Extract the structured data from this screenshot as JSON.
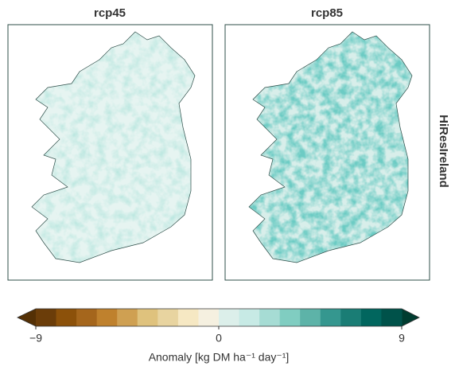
{
  "panels": [
    {
      "title": "rcp45"
    },
    {
      "title": "rcp85"
    }
  ],
  "row_label": "HiResIreland",
  "colorbar": {
    "label": "Anomaly [kg DM ha⁻¹ day⁻¹]",
    "lim": [
      -9,
      9
    ],
    "ticks": [
      {
        "value": -9,
        "label": "−9"
      },
      0,
      9
    ],
    "colors": [
      "#6b3d09",
      "#8c510a",
      "#a5661c",
      "#bf812d",
      "#cfa052",
      "#dfc27d",
      "#e8d4a0",
      "#f6e8c3",
      "#f5f0e0",
      "#dcefea",
      "#c7eae5",
      "#a6dcd4",
      "#80cdc1",
      "#5db3a8",
      "#35978f",
      "#1a7d75",
      "#01665e",
      "#00524a"
    ],
    "extend_colors": [
      "#543005",
      "#003c30"
    ]
  }
}
